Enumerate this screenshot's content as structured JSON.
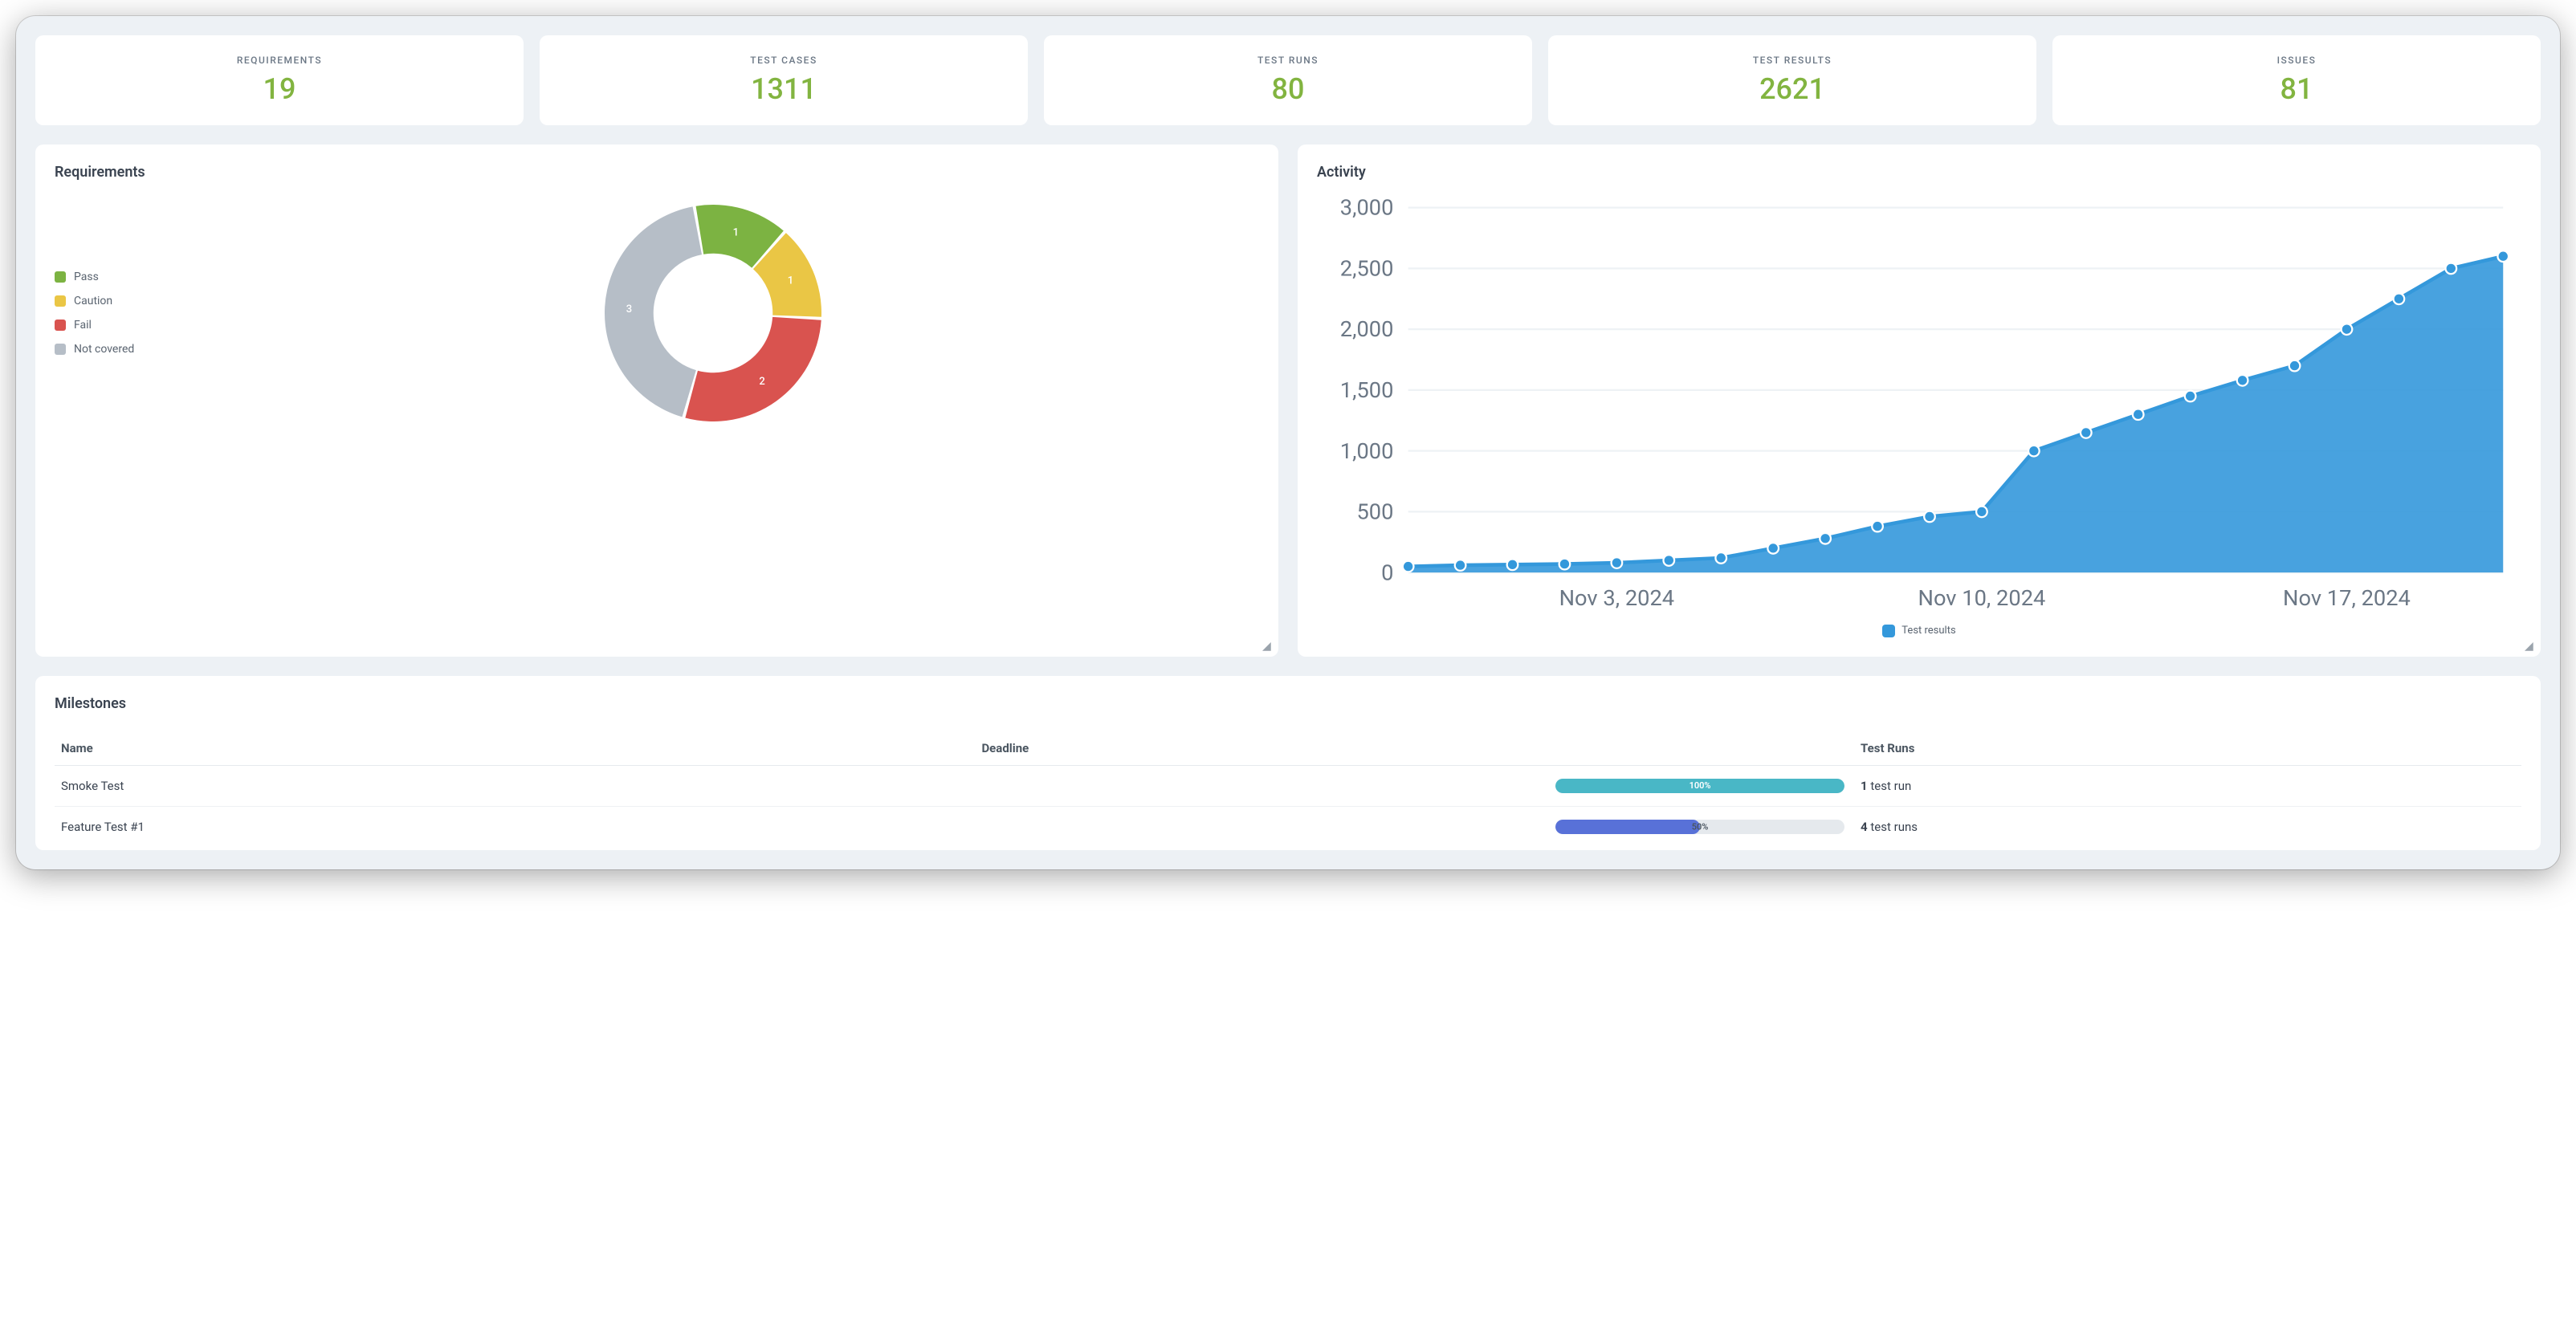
{
  "stats": [
    {
      "label": "REQUIREMENTS",
      "value": "19"
    },
    {
      "label": "TEST CASES",
      "value": "1311"
    },
    {
      "label": "TEST RUNS",
      "value": "80"
    },
    {
      "label": "TEST RESULTS",
      "value": "2621"
    },
    {
      "label": "ISSUES",
      "value": "81"
    }
  ],
  "stat_value_color": "#82b440",
  "requirements": {
    "title": "Requirements",
    "legend": [
      {
        "label": "Pass",
        "color": "#7cb342"
      },
      {
        "label": "Caution",
        "color": "#eac645"
      },
      {
        "label": "Fail",
        "color": "#d9534f"
      },
      {
        "label": "Not covered",
        "color": "#b6bec7"
      }
    ],
    "donut": {
      "slices": [
        {
          "label": "1",
          "value": 1,
          "color": "#7cb342"
        },
        {
          "label": "1",
          "value": 1,
          "color": "#eac645"
        },
        {
          "label": "2",
          "value": 2,
          "color": "#d9534f"
        },
        {
          "label": "3",
          "value": 3,
          "color": "#b6bec7"
        }
      ],
      "inner_radius_pct": 55,
      "start_angle_deg": -10
    }
  },
  "activity": {
    "title": "Activity",
    "series_label": "Test results",
    "series_color": "#3498db",
    "ylim": [
      0,
      3000
    ],
    "ytick_step": 500,
    "xticks": [
      "Nov 3, 2024",
      "Nov 10, 2024",
      "Nov 17, 2024"
    ],
    "xtick_indices": [
      4,
      11,
      18
    ],
    "points": [
      50,
      60,
      65,
      70,
      80,
      100,
      120,
      200,
      280,
      380,
      460,
      500,
      1000,
      1150,
      1300,
      1450,
      1580,
      1700,
      2000,
      2250,
      2500,
      2600
    ],
    "marker_radius": 3,
    "grid_color": "#f6f8fa",
    "axis_color": "#6b7785"
  },
  "milestones": {
    "title": "Milestones",
    "columns": {
      "name": "Name",
      "deadline": "Deadline",
      "testruns": "Test Runs"
    },
    "rows": [
      {
        "name": "Smoke Test",
        "progress_pct": 100,
        "progress_color": "#49b7c6",
        "runs_num": "1",
        "runs_text": "test run"
      },
      {
        "name": "Feature Test #1",
        "progress_pct": 50,
        "progress_color": "#5871d8",
        "runs_num": "4",
        "runs_text": "test runs"
      }
    ]
  }
}
